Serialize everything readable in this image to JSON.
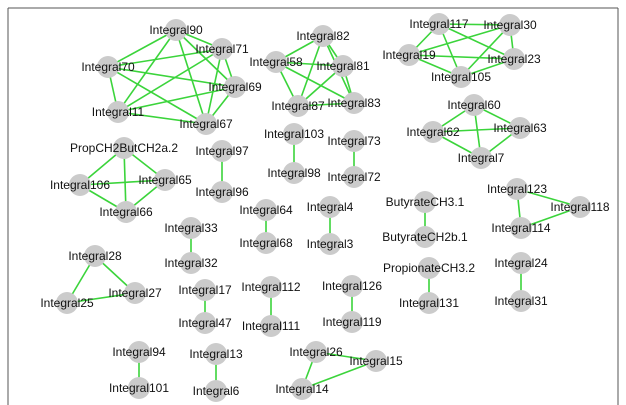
{
  "colors": {
    "edge": "#3bd43b",
    "node": "#cbcbcb",
    "label": "#111111",
    "frame": "#555555"
  },
  "nodes": [
    {
      "id": "Integral90",
      "label": "Integral90"
    },
    {
      "id": "Integral71",
      "label": "Integral71"
    },
    {
      "id": "Integral70",
      "label": "Integral70"
    },
    {
      "id": "Integral69",
      "label": "Integral69"
    },
    {
      "id": "Integral11",
      "label": "Integral11"
    },
    {
      "id": "Integral67",
      "label": "Integral67"
    },
    {
      "id": "Integral82",
      "label": "Integral82"
    },
    {
      "id": "Integral58",
      "label": "Integral58"
    },
    {
      "id": "Integral81",
      "label": "Integral81"
    },
    {
      "id": "Integral87",
      "label": "Integral87"
    },
    {
      "id": "Integral83",
      "label": "Integral83"
    },
    {
      "id": "Integral117",
      "label": "Integral117"
    },
    {
      "id": "Integral30",
      "label": "Integral30"
    },
    {
      "id": "Integral19",
      "label": "Integral19"
    },
    {
      "id": "Integral23",
      "label": "Integral23"
    },
    {
      "id": "Integral105",
      "label": "Integral105"
    },
    {
      "id": "Integral60",
      "label": "Integral60"
    },
    {
      "id": "Integral62",
      "label": "Integral62"
    },
    {
      "id": "Integral63",
      "label": "Integral63"
    },
    {
      "id": "Integral7",
      "label": "Integral7"
    },
    {
      "id": "PropCH2ButCH2a.2",
      "label": "PropCH2ButCH2a.2"
    },
    {
      "id": "Integral106",
      "label": "Integral106"
    },
    {
      "id": "Integral65",
      "label": "Integral65"
    },
    {
      "id": "Integral66",
      "label": "Integral66"
    },
    {
      "id": "Integral97",
      "label": "Integral97"
    },
    {
      "id": "Integral96",
      "label": "Integral96"
    },
    {
      "id": "Integral103",
      "label": "Integral103"
    },
    {
      "id": "Integral98",
      "label": "Integral98"
    },
    {
      "id": "Integral73",
      "label": "Integral73"
    },
    {
      "id": "Integral72",
      "label": "Integral72"
    },
    {
      "id": "Integral64",
      "label": "Integral64"
    },
    {
      "id": "Integral68",
      "label": "Integral68"
    },
    {
      "id": "Integral4",
      "label": "Integral4"
    },
    {
      "id": "Integral3",
      "label": "Integral3"
    },
    {
      "id": "ButyrateCH3.1",
      "label": "ButyrateCH3.1"
    },
    {
      "id": "ButyrateCH2b.1",
      "label": "ButyrateCH2b.1"
    },
    {
      "id": "Integral123",
      "label": "Integral123"
    },
    {
      "id": "Integral118",
      "label": "Integral118"
    },
    {
      "id": "Integral114",
      "label": "Integral114"
    },
    {
      "id": "Integral33",
      "label": "Integral33"
    },
    {
      "id": "Integral32",
      "label": "Integral32"
    },
    {
      "id": "Integral28",
      "label": "Integral28"
    },
    {
      "id": "Integral25",
      "label": "Integral25"
    },
    {
      "id": "Integral27",
      "label": "Integral27"
    },
    {
      "id": "Integral17",
      "label": "Integral17"
    },
    {
      "id": "Integral47",
      "label": "Integral47"
    },
    {
      "id": "Integral112",
      "label": "Integral112"
    },
    {
      "id": "Integral111",
      "label": "Integral111"
    },
    {
      "id": "Integral126",
      "label": "Integral126"
    },
    {
      "id": "Integral119",
      "label": "Integral119"
    },
    {
      "id": "PropionateCH3.2",
      "label": "PropionateCH3.2"
    },
    {
      "id": "Integral131",
      "label": "Integral131"
    },
    {
      "id": "Integral24",
      "label": "Integral24"
    },
    {
      "id": "Integral31",
      "label": "Integral31"
    },
    {
      "id": "Integral94",
      "label": "Integral94"
    },
    {
      "id": "Integral101",
      "label": "Integral101"
    },
    {
      "id": "Integral13",
      "label": "Integral13"
    },
    {
      "id": "Integral6",
      "label": "Integral6"
    },
    {
      "id": "Integral26",
      "label": "Integral26"
    },
    {
      "id": "Integral15",
      "label": "Integral15"
    },
    {
      "id": "Integral14",
      "label": "Integral14"
    }
  ],
  "edges": [
    [
      "Integral90",
      "Integral71"
    ],
    [
      "Integral90",
      "Integral70"
    ],
    [
      "Integral90",
      "Integral69"
    ],
    [
      "Integral90",
      "Integral11"
    ],
    [
      "Integral90",
      "Integral67"
    ],
    [
      "Integral71",
      "Integral70"
    ],
    [
      "Integral71",
      "Integral69"
    ],
    [
      "Integral71",
      "Integral11"
    ],
    [
      "Integral71",
      "Integral67"
    ],
    [
      "Integral70",
      "Integral69"
    ],
    [
      "Integral70",
      "Integral11"
    ],
    [
      "Integral70",
      "Integral67"
    ],
    [
      "Integral69",
      "Integral11"
    ],
    [
      "Integral69",
      "Integral67"
    ],
    [
      "Integral11",
      "Integral67"
    ],
    [
      "Integral82",
      "Integral58"
    ],
    [
      "Integral82",
      "Integral81"
    ],
    [
      "Integral82",
      "Integral87"
    ],
    [
      "Integral82",
      "Integral83"
    ],
    [
      "Integral58",
      "Integral81"
    ],
    [
      "Integral58",
      "Integral87"
    ],
    [
      "Integral58",
      "Integral83"
    ],
    [
      "Integral81",
      "Integral87"
    ],
    [
      "Integral81",
      "Integral83"
    ],
    [
      "Integral87",
      "Integral83"
    ],
    [
      "Integral117",
      "Integral30"
    ],
    [
      "Integral117",
      "Integral19"
    ],
    [
      "Integral117",
      "Integral23"
    ],
    [
      "Integral117",
      "Integral105"
    ],
    [
      "Integral30",
      "Integral19"
    ],
    [
      "Integral30",
      "Integral23"
    ],
    [
      "Integral30",
      "Integral105"
    ],
    [
      "Integral19",
      "Integral23"
    ],
    [
      "Integral19",
      "Integral105"
    ],
    [
      "Integral23",
      "Integral105"
    ],
    [
      "Integral60",
      "Integral62"
    ],
    [
      "Integral60",
      "Integral63"
    ],
    [
      "Integral60",
      "Integral7"
    ],
    [
      "Integral62",
      "Integral63"
    ],
    [
      "Integral62",
      "Integral7"
    ],
    [
      "Integral63",
      "Integral7"
    ],
    [
      "PropCH2ButCH2a.2",
      "Integral106"
    ],
    [
      "PropCH2ButCH2a.2",
      "Integral65"
    ],
    [
      "PropCH2ButCH2a.2",
      "Integral66"
    ],
    [
      "Integral106",
      "Integral65"
    ],
    [
      "Integral106",
      "Integral66"
    ],
    [
      "Integral65",
      "Integral66"
    ],
    [
      "Integral97",
      "Integral96"
    ],
    [
      "Integral103",
      "Integral98"
    ],
    [
      "Integral73",
      "Integral72"
    ],
    [
      "Integral64",
      "Integral68"
    ],
    [
      "Integral4",
      "Integral3"
    ],
    [
      "ButyrateCH3.1",
      "ButyrateCH2b.1"
    ],
    [
      "Integral123",
      "Integral118"
    ],
    [
      "Integral123",
      "Integral114"
    ],
    [
      "Integral114",
      "Integral118"
    ],
    [
      "Integral33",
      "Integral32"
    ],
    [
      "Integral28",
      "Integral25"
    ],
    [
      "Integral28",
      "Integral27"
    ],
    [
      "Integral25",
      "Integral27"
    ],
    [
      "Integral17",
      "Integral47"
    ],
    [
      "Integral112",
      "Integral111"
    ],
    [
      "Integral126",
      "Integral119"
    ],
    [
      "PropionateCH3.2",
      "Integral131"
    ],
    [
      "Integral24",
      "Integral31"
    ],
    [
      "Integral94",
      "Integral101"
    ],
    [
      "Integral13",
      "Integral6"
    ],
    [
      "Integral26",
      "Integral15"
    ],
    [
      "Integral26",
      "Integral14"
    ],
    [
      "Integral15",
      "Integral14"
    ]
  ]
}
